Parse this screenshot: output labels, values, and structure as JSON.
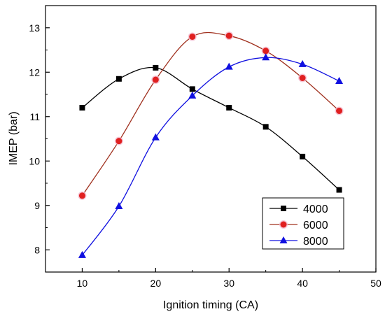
{
  "chart_data": {
    "type": "line",
    "title": "",
    "xlabel": "Ignition timing (CA)",
    "ylabel": "IMEP (bar)",
    "xlim": [
      5,
      50
    ],
    "ylim": [
      7.5,
      13.5
    ],
    "xticks": [
      10,
      20,
      30,
      40,
      50
    ],
    "yticks": [
      8,
      9,
      10,
      11,
      12,
      13
    ],
    "grid": false,
    "legend_position": "bottom-right",
    "x": [
      10,
      15,
      20,
      25,
      30,
      35,
      40,
      45
    ],
    "series": [
      {
        "name": "4000",
        "marker": "square",
        "line_color": "#000000",
        "marker_color": "#000000",
        "values": [
          11.2,
          11.85,
          12.1,
          11.62,
          11.2,
          10.77,
          10.1,
          9.35
        ]
      },
      {
        "name": "6000",
        "marker": "circle",
        "line_color": "#a0301e",
        "marker_color": "#e02020",
        "values": [
          9.22,
          10.45,
          11.83,
          12.8,
          12.82,
          12.48,
          11.87,
          11.13
        ]
      },
      {
        "name": "8000",
        "marker": "triangle",
        "line_color": "#1010e0",
        "marker_color": "#1010e0",
        "values": [
          7.88,
          8.98,
          10.53,
          11.47,
          12.12,
          12.33,
          12.18,
          11.8
        ]
      }
    ]
  }
}
